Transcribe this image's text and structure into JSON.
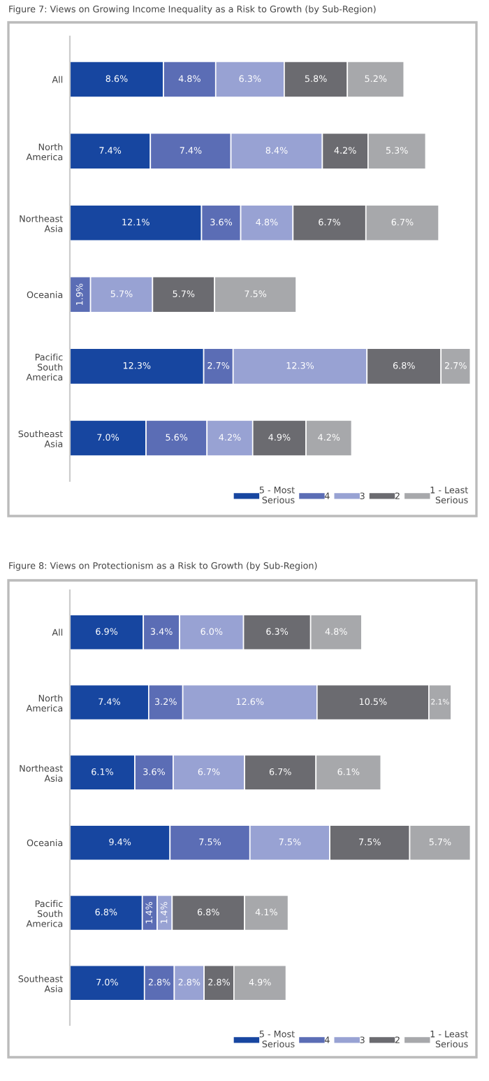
{
  "chart_data": [
    {
      "type": "bar",
      "orientation": "horizontal",
      "stacked": true,
      "title": "Figure 7: Views on Growing Income Inequality as a Risk to Growth (by Sub-Region)",
      "legend": "bottom right",
      "grid": false,
      "tick_labels": "y",
      "categories": [
        "All",
        "North\nAmerica",
        "Northeast\nAsia",
        "Oceania",
        "Pacific\nSouth\nAmerica",
        "Southeast\nAsia"
      ],
      "series": [
        {
          "name": "5 - Most\nSerious",
          "color": "#1746a0",
          "values": [
            8.6,
            7.4,
            12.1,
            null,
            12.3,
            7.0
          ],
          "value_labels": [
            "8.6%",
            "7.4%",
            "12.1%",
            null,
            "12.3%",
            "7.0%"
          ]
        },
        {
          "name": "4",
          "color": "#5b6db5",
          "values": [
            4.8,
            7.4,
            3.6,
            1.9,
            2.7,
            5.6
          ],
          "value_labels": [
            "4.8%",
            "7.4%",
            "3.6%",
            "1.9%",
            "2.7%",
            "5.6%"
          ]
        },
        {
          "name": "3",
          "color": "#98a2d3",
          "values": [
            6.3,
            8.4,
            4.8,
            5.7,
            12.3,
            4.2
          ],
          "value_labels": [
            "6.3%",
            "8.4%",
            "4.8%",
            "5.7%",
            "12.3%",
            "4.2%"
          ]
        },
        {
          "name": "2",
          "color": "#6b6b70",
          "values": [
            5.8,
            4.2,
            6.7,
            5.7,
            6.8,
            4.9
          ],
          "value_labels": [
            "5.8%",
            "4.2%",
            "6.7%",
            "5.7%",
            "6.8%",
            "4.9%"
          ]
        },
        {
          "name": "1 - Least\nSerious",
          "color": "#a7a8ab",
          "values": [
            5.2,
            5.3,
            6.7,
            7.5,
            2.7,
            4.2
          ],
          "value_labels": [
            "5.2%",
            "5.3%",
            "6.7%",
            "7.5%",
            "2.7%",
            "4.2%"
          ]
        }
      ]
    },
    {
      "type": "bar",
      "orientation": "horizontal",
      "stacked": true,
      "title": "Figure 8: Views on Protectionism as a Risk to Growth (by Sub-Region)",
      "legend": "bottom right",
      "grid": false,
      "tick_labels": "y",
      "categories": [
        "All",
        "North\nAmerica",
        "Northeast\nAsia",
        "Oceania",
        "Pacific\nSouth\nAmerica",
        "Southeast\nAsia"
      ],
      "series": [
        {
          "name": "5 - Most\nSerious",
          "color": "#1746a0",
          "values": [
            6.9,
            7.4,
            6.1,
            9.4,
            6.8,
            7.0
          ],
          "value_labels": [
            "6.9%",
            "7.4%",
            "6.1%",
            "9.4%",
            "6.8%",
            "7.0%"
          ]
        },
        {
          "name": "4",
          "color": "#5b6db5",
          "values": [
            3.4,
            3.2,
            3.6,
            7.5,
            1.4,
            2.8
          ],
          "value_labels": [
            "3.4%",
            "3.2%",
            "3.6%",
            "7.5%",
            "1.4%",
            "2.8%"
          ]
        },
        {
          "name": "3",
          "color": "#98a2d3",
          "values": [
            6.0,
            12.6,
            6.7,
            7.5,
            1.4,
            2.8
          ],
          "value_labels": [
            "6.0%",
            "12.6%",
            "6.7%",
            "7.5%",
            "1.4%",
            "2.8%"
          ]
        },
        {
          "name": "2",
          "color": "#6b6b70",
          "values": [
            6.3,
            10.5,
            6.7,
            7.5,
            6.8,
            2.8
          ],
          "value_labels": [
            "6.3%",
            "10.5%",
            "6.7%",
            "7.5%",
            "6.8%",
            "2.8%"
          ]
        },
        {
          "name": "1 - Least\nSerious",
          "color": "#a7a8ab",
          "values": [
            4.8,
            2.1,
            6.1,
            5.7,
            4.1,
            4.9
          ],
          "value_labels": [
            "4.8%",
            "2.1%",
            "6.1%",
            "5.7%",
            "4.1%",
            "4.9%"
          ]
        }
      ]
    }
  ]
}
